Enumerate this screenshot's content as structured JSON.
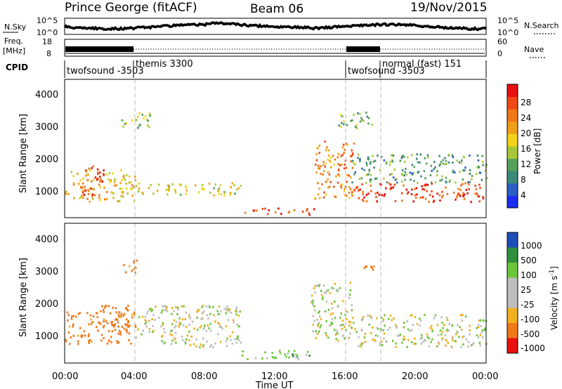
{
  "header": {
    "station": "Prince George (fitACF)",
    "beam": "Beam 06",
    "date": "19/Nov/2015"
  },
  "summary": {
    "nsky_label": "N.Sky",
    "nsky_ticks": [
      "10^5",
      "10^0"
    ],
    "nsearch_label": "N.Search",
    "nsearch_ticks": [
      "10^5",
      "10^0"
    ],
    "freq_label_line1": "Freq.",
    "freq_label_line2": "[MHz]",
    "freq_ticks": [
      "18",
      "8"
    ],
    "nave_label": "Nave",
    "nave_ticks": [
      "60",
      "0"
    ],
    "cpid_label": "CPID",
    "cpid_segments": [
      {
        "label": "twofsound -3503"
      },
      {
        "label": "themis 3300"
      },
      {
        "label": "twofsound -3503"
      },
      {
        "label": "normal (fast) 151"
      }
    ]
  },
  "power_panel": {
    "ylabel": "Slant Range [km]",
    "yticks": [
      "4000",
      "3000",
      "2000",
      "1000"
    ],
    "colorbar_label": "Power [dB]",
    "colorbar_ticks": [
      "28",
      "24",
      "20",
      "16",
      "12",
      "8",
      "4"
    ]
  },
  "velocity_panel": {
    "ylabel": "Slant Range [km]",
    "yticks": [
      "4000",
      "3000",
      "2000",
      "1000"
    ],
    "colorbar_label": "Velocity [m s",
    "colorbar_label_sup": "-1",
    "colorbar_label_end": "]",
    "colorbar_ticks": [
      "1000",
      "500",
      "100",
      "25",
      "-25",
      "-100",
      "-500",
      "-1000"
    ]
  },
  "xaxis": {
    "ticks": [
      "00:00",
      "04:00",
      "08:00",
      "12:00",
      "16:00",
      "20:00",
      "00:00"
    ],
    "label": "Time UT"
  },
  "colors": {
    "power_scale": [
      "#1a2ef0",
      "#2b5fc4",
      "#3a8a7a",
      "#55a05a",
      "#a8c83a",
      "#f2d21a",
      "#f0a018",
      "#f07818",
      "#f04a14",
      "#e81010"
    ],
    "velocity_scale": [
      "#1e4fb8",
      "#2f8f3f",
      "#6cc63a",
      "#bebebe",
      "#bebebe",
      "#f0b020",
      "#f07818",
      "#e81010"
    ]
  },
  "chart_data": [
    {
      "type": "heatmap",
      "title": "Power",
      "x_range_hours": [
        0,
        24
      ],
      "y_range_km": [
        180,
        4500
      ],
      "xlabel": "Time UT",
      "ylabel": "Slant Range [km]",
      "colorbar": {
        "label": "Power [dB]",
        "range": [
          0,
          30
        ],
        "ticks": [
          4,
          8,
          12,
          16,
          20,
          24,
          28
        ]
      },
      "cpid_boundaries_hours": [
        4.0,
        16.0,
        18.0
      ],
      "regions": [
        {
          "t0": 0.0,
          "t1": 4.0,
          "r0": 700,
          "r1": 1700,
          "power_db": 18
        },
        {
          "t0": 1.0,
          "t1": 2.2,
          "r0": 900,
          "r1": 1900,
          "power_db": 26
        },
        {
          "t0": 4.0,
          "t1": 10.0,
          "r0": 900,
          "r1": 1300,
          "power_db": 16
        },
        {
          "t0": 10.2,
          "t1": 14.2,
          "r0": 300,
          "r1": 500,
          "power_db": 24
        },
        {
          "t0": 14.2,
          "t1": 16.5,
          "r0": 800,
          "r1": 2600,
          "power_db": 22
        },
        {
          "t0": 16.3,
          "t1": 24.0,
          "r0": 700,
          "r1": 1300,
          "power_db": 26
        },
        {
          "t0": 16.3,
          "t1": 24.0,
          "r0": 1300,
          "r1": 2200,
          "power_db": 10
        },
        {
          "t0": 3.2,
          "t1": 5.0,
          "r0": 3000,
          "r1": 3500,
          "power_db": 12
        },
        {
          "t0": 15.5,
          "t1": 17.5,
          "r0": 3000,
          "r1": 3500,
          "power_db": 12
        }
      ]
    },
    {
      "type": "heatmap",
      "title": "Velocity",
      "x_range_hours": [
        0,
        24
      ],
      "y_range_km": [
        180,
        4500
      ],
      "xlabel": "Time UT",
      "ylabel": "Slant Range [km]",
      "colorbar": {
        "label": "Velocity [m s-1]",
        "range": [
          -1000,
          1000
        ],
        "ticks": [
          1000,
          500,
          100,
          25,
          -25,
          -100,
          -500,
          -1000
        ]
      },
      "regions": [
        {
          "t0": 0.0,
          "t1": 4.0,
          "r0": 800,
          "r1": 1800,
          "velocity": -150
        },
        {
          "t0": 2.0,
          "t1": 4.0,
          "r0": 1300,
          "r1": 2000,
          "velocity": -200
        },
        {
          "t0": 4.0,
          "t1": 10.0,
          "r0": 700,
          "r1": 2000,
          "velocity": 0
        },
        {
          "t0": 10.0,
          "t1": 14.0,
          "r0": 300,
          "r1": 600,
          "velocity": 50
        },
        {
          "t0": 14.0,
          "t1": 16.5,
          "r0": 900,
          "r1": 2700,
          "velocity": 0
        },
        {
          "t0": 16.5,
          "t1": 24.0,
          "r0": 700,
          "r1": 1700,
          "velocity": 0
        },
        {
          "t0": 3.2,
          "t1": 4.2,
          "r0": 3000,
          "r1": 3400,
          "velocity": -150
        },
        {
          "t0": 16.8,
          "t1": 17.8,
          "r0": 3000,
          "r1": 3300,
          "velocity": -150
        }
      ]
    }
  ]
}
